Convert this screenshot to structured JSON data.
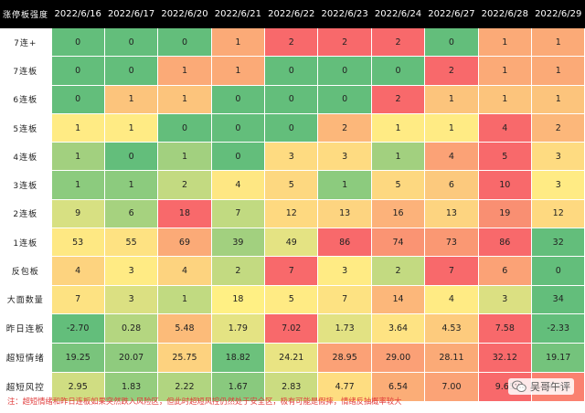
{
  "chart_data": {
    "type": "heatmap",
    "corner_label": "涨停板强度",
    "columns": [
      "2022/6/16",
      "2022/6/17",
      "2022/6/20",
      "2022/6/21",
      "2022/6/22",
      "2022/6/23",
      "2022/6/24",
      "2022/6/27",
      "2022/6/28",
      "2022/6/29"
    ],
    "rows": [
      {
        "label": "7连+",
        "values": [
          "0",
          "0",
          "0",
          "1",
          "2",
          "2",
          "2",
          "0",
          "1",
          "1"
        ]
      },
      {
        "label": "7连板",
        "values": [
          "0",
          "0",
          "1",
          "1",
          "0",
          "0",
          "0",
          "2",
          "1",
          "1"
        ]
      },
      {
        "label": "6连板",
        "values": [
          "0",
          "1",
          "1",
          "0",
          "0",
          "0",
          "2",
          "1",
          "1",
          "1"
        ]
      },
      {
        "label": "5连板",
        "values": [
          "1",
          "1",
          "0",
          "0",
          "0",
          "2",
          "1",
          "1",
          "4",
          "2"
        ]
      },
      {
        "label": "4连板",
        "values": [
          "1",
          "0",
          "1",
          "0",
          "3",
          "3",
          "1",
          "4",
          "5",
          "3"
        ]
      },
      {
        "label": "3连板",
        "values": [
          "1",
          "1",
          "2",
          "4",
          "5",
          "1",
          "5",
          "6",
          "10",
          "3"
        ]
      },
      {
        "label": "2连板",
        "values": [
          "9",
          "6",
          "18",
          "7",
          "12",
          "13",
          "16",
          "13",
          "19",
          "12"
        ]
      },
      {
        "label": "1连板",
        "values": [
          "53",
          "55",
          "69",
          "39",
          "49",
          "86",
          "74",
          "73",
          "86",
          "32"
        ]
      },
      {
        "label": "反包板",
        "values": [
          "4",
          "3",
          "4",
          "2",
          "7",
          "3",
          "2",
          "7",
          "6",
          "0"
        ]
      },
      {
        "label": "大面数量",
        "values": [
          "7",
          "3",
          "1",
          "18",
          "5",
          "7",
          "14",
          "4",
          "3",
          "34"
        ]
      },
      {
        "label": "昨日连板",
        "values": [
          "-2.70",
          "0.28",
          "5.48",
          "1.79",
          "7.02",
          "1.73",
          "3.64",
          "4.53",
          "7.58",
          "-2.33"
        ]
      },
      {
        "label": "超短情绪",
        "values": [
          "19.25",
          "20.07",
          "25.75",
          "18.82",
          "24.21",
          "28.95",
          "29.00",
          "28.11",
          "32.12",
          "19.17"
        ]
      },
      {
        "label": "超短风控",
        "values": [
          "2.95",
          "1.83",
          "2.22",
          "1.67",
          "2.83",
          "4.77",
          "6.54",
          "7.00",
          "9.65",
          "8.64"
        ]
      }
    ],
    "colors": [
      [
        "#63be7b",
        "#63be7b",
        "#63be7b",
        "#fbaa77",
        "#f8696b",
        "#f8696b",
        "#f8696b",
        "#63be7b",
        "#fbaa77",
        "#fbaa77"
      ],
      [
        "#63be7b",
        "#63be7b",
        "#fbaa77",
        "#fbaa77",
        "#63be7b",
        "#63be7b",
        "#63be7b",
        "#f8696b",
        "#fbaa77",
        "#fbaa77"
      ],
      [
        "#63be7b",
        "#fcc47c",
        "#fcc47c",
        "#63be7b",
        "#63be7b",
        "#63be7b",
        "#f8696b",
        "#fcc47c",
        "#fcc47c",
        "#fcc47c"
      ],
      [
        "#ffeb84",
        "#ffeb84",
        "#63be7b",
        "#63be7b",
        "#63be7b",
        "#fcb77a",
        "#ffeb84",
        "#ffeb84",
        "#f8696b",
        "#fcb77a"
      ],
      [
        "#a2d07f",
        "#63be7b",
        "#a2d07f",
        "#63be7b",
        "#fedb81",
        "#fedb81",
        "#a2d07f",
        "#fba276",
        "#f8696b",
        "#fedb81"
      ],
      [
        "#8ccb7e",
        "#8ccb7e",
        "#c3da81",
        "#fee783",
        "#fdd880",
        "#8ccb7e",
        "#fdd880",
        "#fcc97d",
        "#f8696b",
        "#ffeb84"
      ],
      [
        "#d7e082",
        "#a6d27f",
        "#f8696b",
        "#c1da81",
        "#fed980",
        "#fdd480",
        "#fcb27a",
        "#fdd480",
        "#f98f72",
        "#fed980"
      ],
      [
        "#fee883",
        "#fee282",
        "#fbaa77",
        "#a2d07f",
        "#e4e383",
        "#f8696b",
        "#fa9473",
        "#fa9873",
        "#f8696b",
        "#63be7b"
      ],
      [
        "#fdd37f",
        "#ffeb84",
        "#fdd37f",
        "#c3da81",
        "#f8696b",
        "#ffeb84",
        "#c3da81",
        "#f8696b",
        "#fba276",
        "#63be7b"
      ],
      [
        "#fde282",
        "#dbe082",
        "#c1da81",
        "#fff084",
        "#ffeb84",
        "#fde282",
        "#fcb77a",
        "#ffeb84",
        "#dbe082",
        "#63be7b"
      ],
      [
        "#63be7b",
        "#b4d680",
        "#fcbb79",
        "#e4e383",
        "#f8696b",
        "#e2e283",
        "#fee383",
        "#fdcb7d",
        "#f8696b",
        "#63be7b"
      ],
      [
        "#79c47c",
        "#8fcb7e",
        "#fdd27f",
        "#6cc17c",
        "#e9e483",
        "#fba176",
        "#fba076",
        "#fbaa77",
        "#f8696b",
        "#74c37c"
      ],
      [
        "#d0dd82",
        "#95cd7e",
        "#b1d580",
        "#89c97e",
        "#cbdc81",
        "#fedd81",
        "#fbad77",
        "#fba376",
        "#f8696b",
        "#fa8170"
      ]
    ]
  },
  "note": "注：超短情绪和昨日连板如果突然跌入风险区，但此时超短风控仍然处于安全区，极有可能是假摔，情绪反抽概率较大",
  "watermark": "吴哥午评"
}
